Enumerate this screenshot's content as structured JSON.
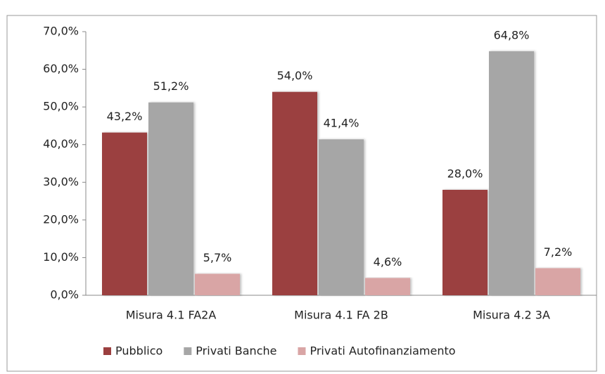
{
  "chart_data": {
    "type": "bar",
    "categories": [
      "Misura 4.1 FA2A",
      "Misura 4.1 FA 2B",
      "Misura 4.2 3A"
    ],
    "series": [
      {
        "name": "Pubblico",
        "color": "#9b3f3f",
        "values": [
          43.2,
          54.0,
          28.0
        ],
        "value_labels": [
          "43,2%",
          "54,0%",
          "28,0%"
        ]
      },
      {
        "name": "Privati Banche",
        "color": "#a6a6a6",
        "values": [
          51.2,
          41.4,
          64.8
        ],
        "value_labels": [
          "51,2%",
          "41,4%",
          "64,8%"
        ]
      },
      {
        "name": "Privati Autofinanziamento",
        "color": "#d9a5a5",
        "values": [
          5.7,
          4.6,
          7.2
        ],
        "value_labels": [
          "5,7%",
          "4,6%",
          "7,2%"
        ]
      }
    ],
    "ylim": [
      0,
      70
    ],
    "yticks": [
      {
        "value": 0,
        "label": "0,0%"
      },
      {
        "value": 10,
        "label": "10,0%"
      },
      {
        "value": 20,
        "label": "20,0%"
      },
      {
        "value": 30,
        "label": "30,0%"
      },
      {
        "value": 40,
        "label": "40,0%"
      },
      {
        "value": 50,
        "label": "50,0%"
      },
      {
        "value": 60,
        "label": "60,0%"
      },
      {
        "value": 70,
        "label": "70,0%"
      }
    ],
    "grid": false,
    "legend": "bottom"
  }
}
